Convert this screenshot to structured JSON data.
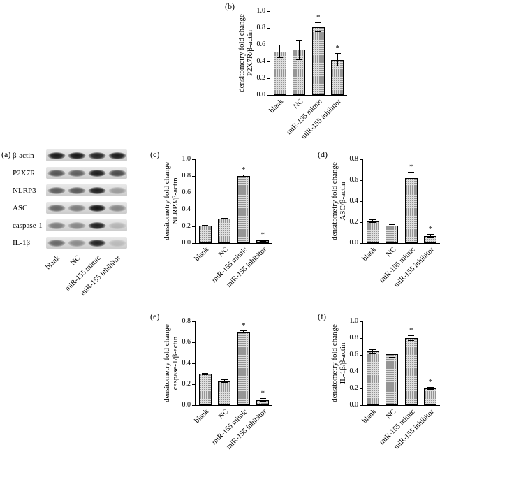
{
  "colors": {
    "bar_fill": "#dedede",
    "bar_dot": "#3c3c3c",
    "axis": "#000000",
    "background": "#ffffff"
  },
  "figure": {
    "panel_a": {
      "label": "(a)",
      "rows": [
        {
          "label": "β-actin",
          "bands": [
            0.93,
            0.95,
            0.88,
            0.93
          ]
        },
        {
          "label": "P2X7R",
          "bands": [
            0.65,
            0.6,
            0.92,
            0.7
          ]
        },
        {
          "label": "NLRP3",
          "bands": [
            0.6,
            0.62,
            0.9,
            0.3
          ]
        },
        {
          "label": "ASC",
          "bands": [
            0.55,
            0.45,
            0.95,
            0.4
          ]
        },
        {
          "label": "caspase-1",
          "bands": [
            0.45,
            0.4,
            0.9,
            0.18
          ]
        },
        {
          "label": "IL-1β",
          "bands": [
            0.55,
            0.38,
            0.88,
            0.15
          ]
        }
      ],
      "lane_labels": [
        "blank",
        "NC",
        "miR-155 mimic",
        "miR-155 inhibitor"
      ]
    }
  },
  "chart_data": [
    {
      "id": "b",
      "panel_label": "(b)",
      "type": "bar",
      "categories": [
        "blank",
        "NC",
        "miR-155 mimic",
        "miR-155 inhibitor"
      ],
      "values": [
        0.52,
        0.54,
        0.81,
        0.42
      ],
      "errors": [
        0.08,
        0.12,
        0.06,
        0.08
      ],
      "significance": [
        "",
        "",
        "*",
        "*"
      ],
      "ylabel_lines": [
        "densitometry fold change",
        "P2X7R/β-actin"
      ],
      "ylim": [
        0,
        1.0
      ],
      "yticks": [
        0.0,
        0.2,
        0.4,
        0.6,
        0.8,
        1.0
      ],
      "grid": false,
      "legend": "none"
    },
    {
      "id": "c",
      "panel_label": "(c)",
      "type": "bar",
      "categories": [
        "blank",
        "NC",
        "miR-155 mimic",
        "miR-155 inhibitor"
      ],
      "values": [
        0.21,
        0.29,
        0.8,
        0.03
      ],
      "errors": [
        0.01,
        0.01,
        0.02,
        0.01
      ],
      "significance": [
        "",
        "",
        "*",
        "*"
      ],
      "ylabel_lines": [
        "densitometry fold change",
        "NLRP3/β-actin"
      ],
      "ylim": [
        0,
        1.0
      ],
      "yticks": [
        0.0,
        0.2,
        0.4,
        0.6,
        0.8,
        1.0
      ],
      "grid": false,
      "legend": "none"
    },
    {
      "id": "d",
      "panel_label": "(d)",
      "type": "bar",
      "categories": [
        "blank",
        "NC",
        "miR-155 mimic",
        "miR-155 inhibitor"
      ],
      "values": [
        0.21,
        0.17,
        0.62,
        0.07
      ],
      "errors": [
        0.015,
        0.01,
        0.06,
        0.015
      ],
      "significance": [
        "",
        "",
        "*",
        "*"
      ],
      "ylabel_lines": [
        "densitometry fold change",
        "ASC/β-actin"
      ],
      "ylim": [
        0,
        0.8
      ],
      "yticks": [
        0.0,
        0.2,
        0.4,
        0.6,
        0.8
      ],
      "grid": false,
      "legend": "none"
    },
    {
      "id": "e",
      "panel_label": "(e)",
      "type": "bar",
      "categories": [
        "blank",
        "NC",
        "miR-155 mimic",
        "miR-155 inhibitor"
      ],
      "values": [
        0.3,
        0.23,
        0.7,
        0.05
      ],
      "errors": [
        0.01,
        0.015,
        0.015,
        0.015
      ],
      "significance": [
        "",
        "",
        "*",
        "*"
      ],
      "ylabel_lines": [
        "densitometry fold change",
        "caspase-1/β-actin"
      ],
      "ylim": [
        0,
        0.8
      ],
      "yticks": [
        0.0,
        0.2,
        0.4,
        0.6,
        0.8
      ],
      "grid": false,
      "legend": "none"
    },
    {
      "id": "f",
      "panel_label": "(f)",
      "type": "bar",
      "categories": [
        "blank",
        "NC",
        "miR-155 mimic",
        "miR-155 inhibitor"
      ],
      "values": [
        0.64,
        0.61,
        0.8,
        0.2
      ],
      "errors": [
        0.03,
        0.04,
        0.03,
        0.02
      ],
      "significance": [
        "",
        "",
        "*",
        "*"
      ],
      "ylabel_lines": [
        "densitometry fold change",
        "IL-1β/β-actin"
      ],
      "ylim": [
        0,
        1.0
      ],
      "yticks": [
        0.0,
        0.2,
        0.4,
        0.6,
        0.8,
        1.0
      ],
      "grid": false,
      "legend": "none"
    }
  ]
}
